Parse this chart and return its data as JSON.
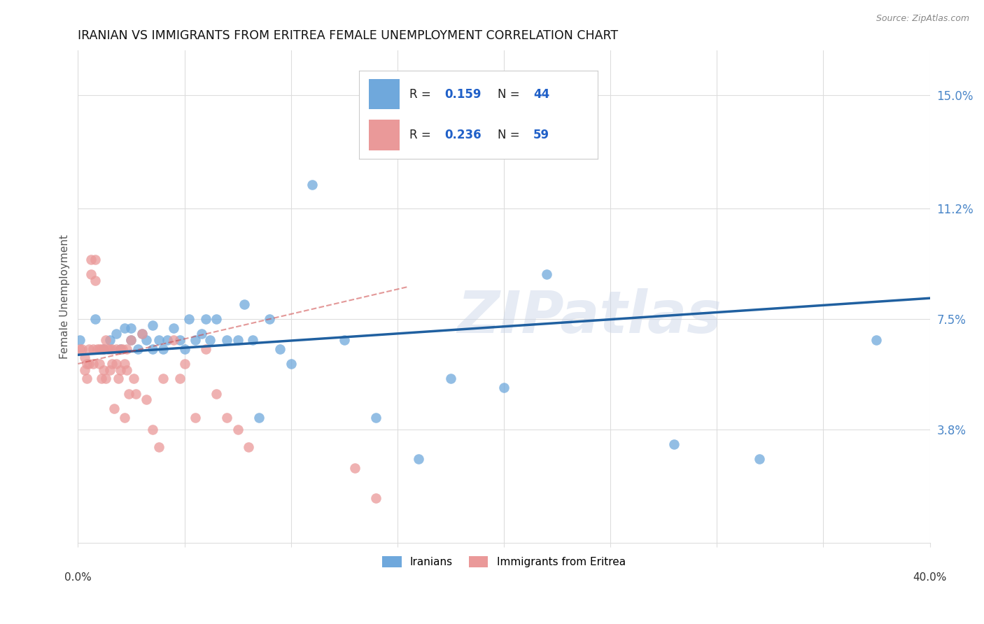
{
  "title": "IRANIAN VS IMMIGRANTS FROM ERITREA FEMALE UNEMPLOYMENT CORRELATION CHART",
  "source": "Source: ZipAtlas.com",
  "ylabel": "Female Unemployment",
  "ytick_labels": [
    "15.0%",
    "11.2%",
    "7.5%",
    "3.8%"
  ],
  "ytick_values": [
    0.15,
    0.112,
    0.075,
    0.038
  ],
  "xlim": [
    0.0,
    0.4
  ],
  "ylim": [
    0.0,
    0.165
  ],
  "watermark": "ZIPatlas",
  "iranians_R": "0.159",
  "iranians_N": "44",
  "eritrea_R": "0.236",
  "eritrea_N": "59",
  "iranians_color": "#6fa8dc",
  "eritrea_color": "#ea9999",
  "iranians_x": [
    0.001,
    0.008,
    0.012,
    0.015,
    0.018,
    0.02,
    0.022,
    0.025,
    0.025,
    0.028,
    0.03,
    0.032,
    0.035,
    0.035,
    0.038,
    0.04,
    0.042,
    0.045,
    0.048,
    0.05,
    0.052,
    0.055,
    0.058,
    0.06,
    0.062,
    0.065,
    0.07,
    0.075,
    0.078,
    0.082,
    0.085,
    0.09,
    0.095,
    0.1,
    0.11,
    0.125,
    0.14,
    0.16,
    0.175,
    0.2,
    0.22,
    0.28,
    0.32,
    0.375
  ],
  "iranians_y": [
    0.068,
    0.075,
    0.065,
    0.068,
    0.07,
    0.065,
    0.072,
    0.068,
    0.072,
    0.065,
    0.07,
    0.068,
    0.065,
    0.073,
    0.068,
    0.065,
    0.068,
    0.072,
    0.068,
    0.065,
    0.075,
    0.068,
    0.07,
    0.075,
    0.068,
    0.075,
    0.068,
    0.068,
    0.08,
    0.068,
    0.042,
    0.075,
    0.065,
    0.06,
    0.12,
    0.068,
    0.042,
    0.028,
    0.055,
    0.052,
    0.09,
    0.033,
    0.028,
    0.068
  ],
  "eritrea_x": [
    0.001,
    0.002,
    0.003,
    0.003,
    0.004,
    0.004,
    0.005,
    0.005,
    0.006,
    0.006,
    0.007,
    0.007,
    0.008,
    0.008,
    0.009,
    0.01,
    0.01,
    0.011,
    0.011,
    0.012,
    0.012,
    0.013,
    0.013,
    0.014,
    0.015,
    0.015,
    0.016,
    0.016,
    0.017,
    0.018,
    0.018,
    0.019,
    0.02,
    0.02,
    0.021,
    0.022,
    0.022,
    0.023,
    0.023,
    0.024,
    0.025,
    0.026,
    0.027,
    0.03,
    0.032,
    0.035,
    0.038,
    0.04,
    0.045,
    0.048,
    0.05,
    0.055,
    0.06,
    0.065,
    0.07,
    0.075,
    0.08,
    0.13,
    0.14
  ],
  "eritrea_y": [
    0.065,
    0.065,
    0.062,
    0.058,
    0.06,
    0.055,
    0.065,
    0.06,
    0.095,
    0.09,
    0.065,
    0.06,
    0.095,
    0.088,
    0.065,
    0.065,
    0.06,
    0.065,
    0.055,
    0.065,
    0.058,
    0.068,
    0.055,
    0.065,
    0.065,
    0.058,
    0.065,
    0.06,
    0.045,
    0.065,
    0.06,
    0.055,
    0.065,
    0.058,
    0.065,
    0.06,
    0.042,
    0.065,
    0.058,
    0.05,
    0.068,
    0.055,
    0.05,
    0.07,
    0.048,
    0.038,
    0.032,
    0.055,
    0.068,
    0.055,
    0.06,
    0.042,
    0.065,
    0.05,
    0.042,
    0.038,
    0.032,
    0.025,
    0.015
  ],
  "blue_line_color": "#2060a0",
  "pink_line_color": "#cc4444",
  "grid_color": "#dddddd",
  "background_color": "#ffffff"
}
